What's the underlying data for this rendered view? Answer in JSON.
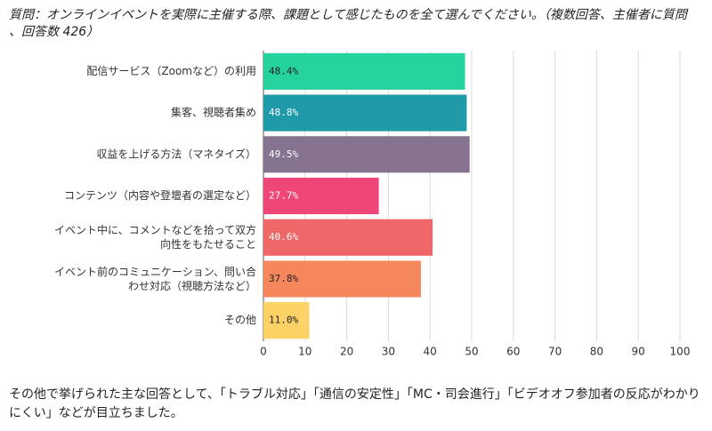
{
  "chart_data": {
    "type": "barh",
    "title": "質問：オンラインイベントを実際に主催する際、課題として感じたものを全て選んでください。（複数回答、主催者に質問 、回答数 426）",
    "categories": [
      "配信サービス（Zoomなど）の利用",
      "集客、視聴者集め",
      "収益を上げる方法（マネタイズ）",
      "コンテンツ（内容や登壇者の選定など）",
      "イベント中に、コメントなどを拾って双方\n向性をもたせること",
      "イベント前のコミュニケーション、問い合\nわせ対応（視聴方法など）",
      "その他"
    ],
    "values": [
      48.4,
      48.8,
      49.5,
      27.7,
      40.6,
      37.8,
      11.0
    ],
    "value_labels": [
      "48.4%",
      "48.8%",
      "49.5%",
      "27.7%",
      "40.6%",
      "37.8%",
      "11.0%"
    ],
    "colors": [
      "#25d39f",
      "#1f9aa9",
      "#86738f",
      "#ee4777",
      "#f06767",
      "#f6865b",
      "#fcd166"
    ],
    "xlim": [
      0,
      100
    ],
    "xticks": [
      0,
      10,
      20,
      30,
      40,
      50,
      60,
      70,
      80,
      90,
      100
    ],
    "grid": true,
    "note": "その他で挙げられた主な回答として、「トラブル対応」「通信の安定性」「MC・司会進行」「ビデオオフ参加者の反応がわかりにくい」などが目立ちました。"
  }
}
